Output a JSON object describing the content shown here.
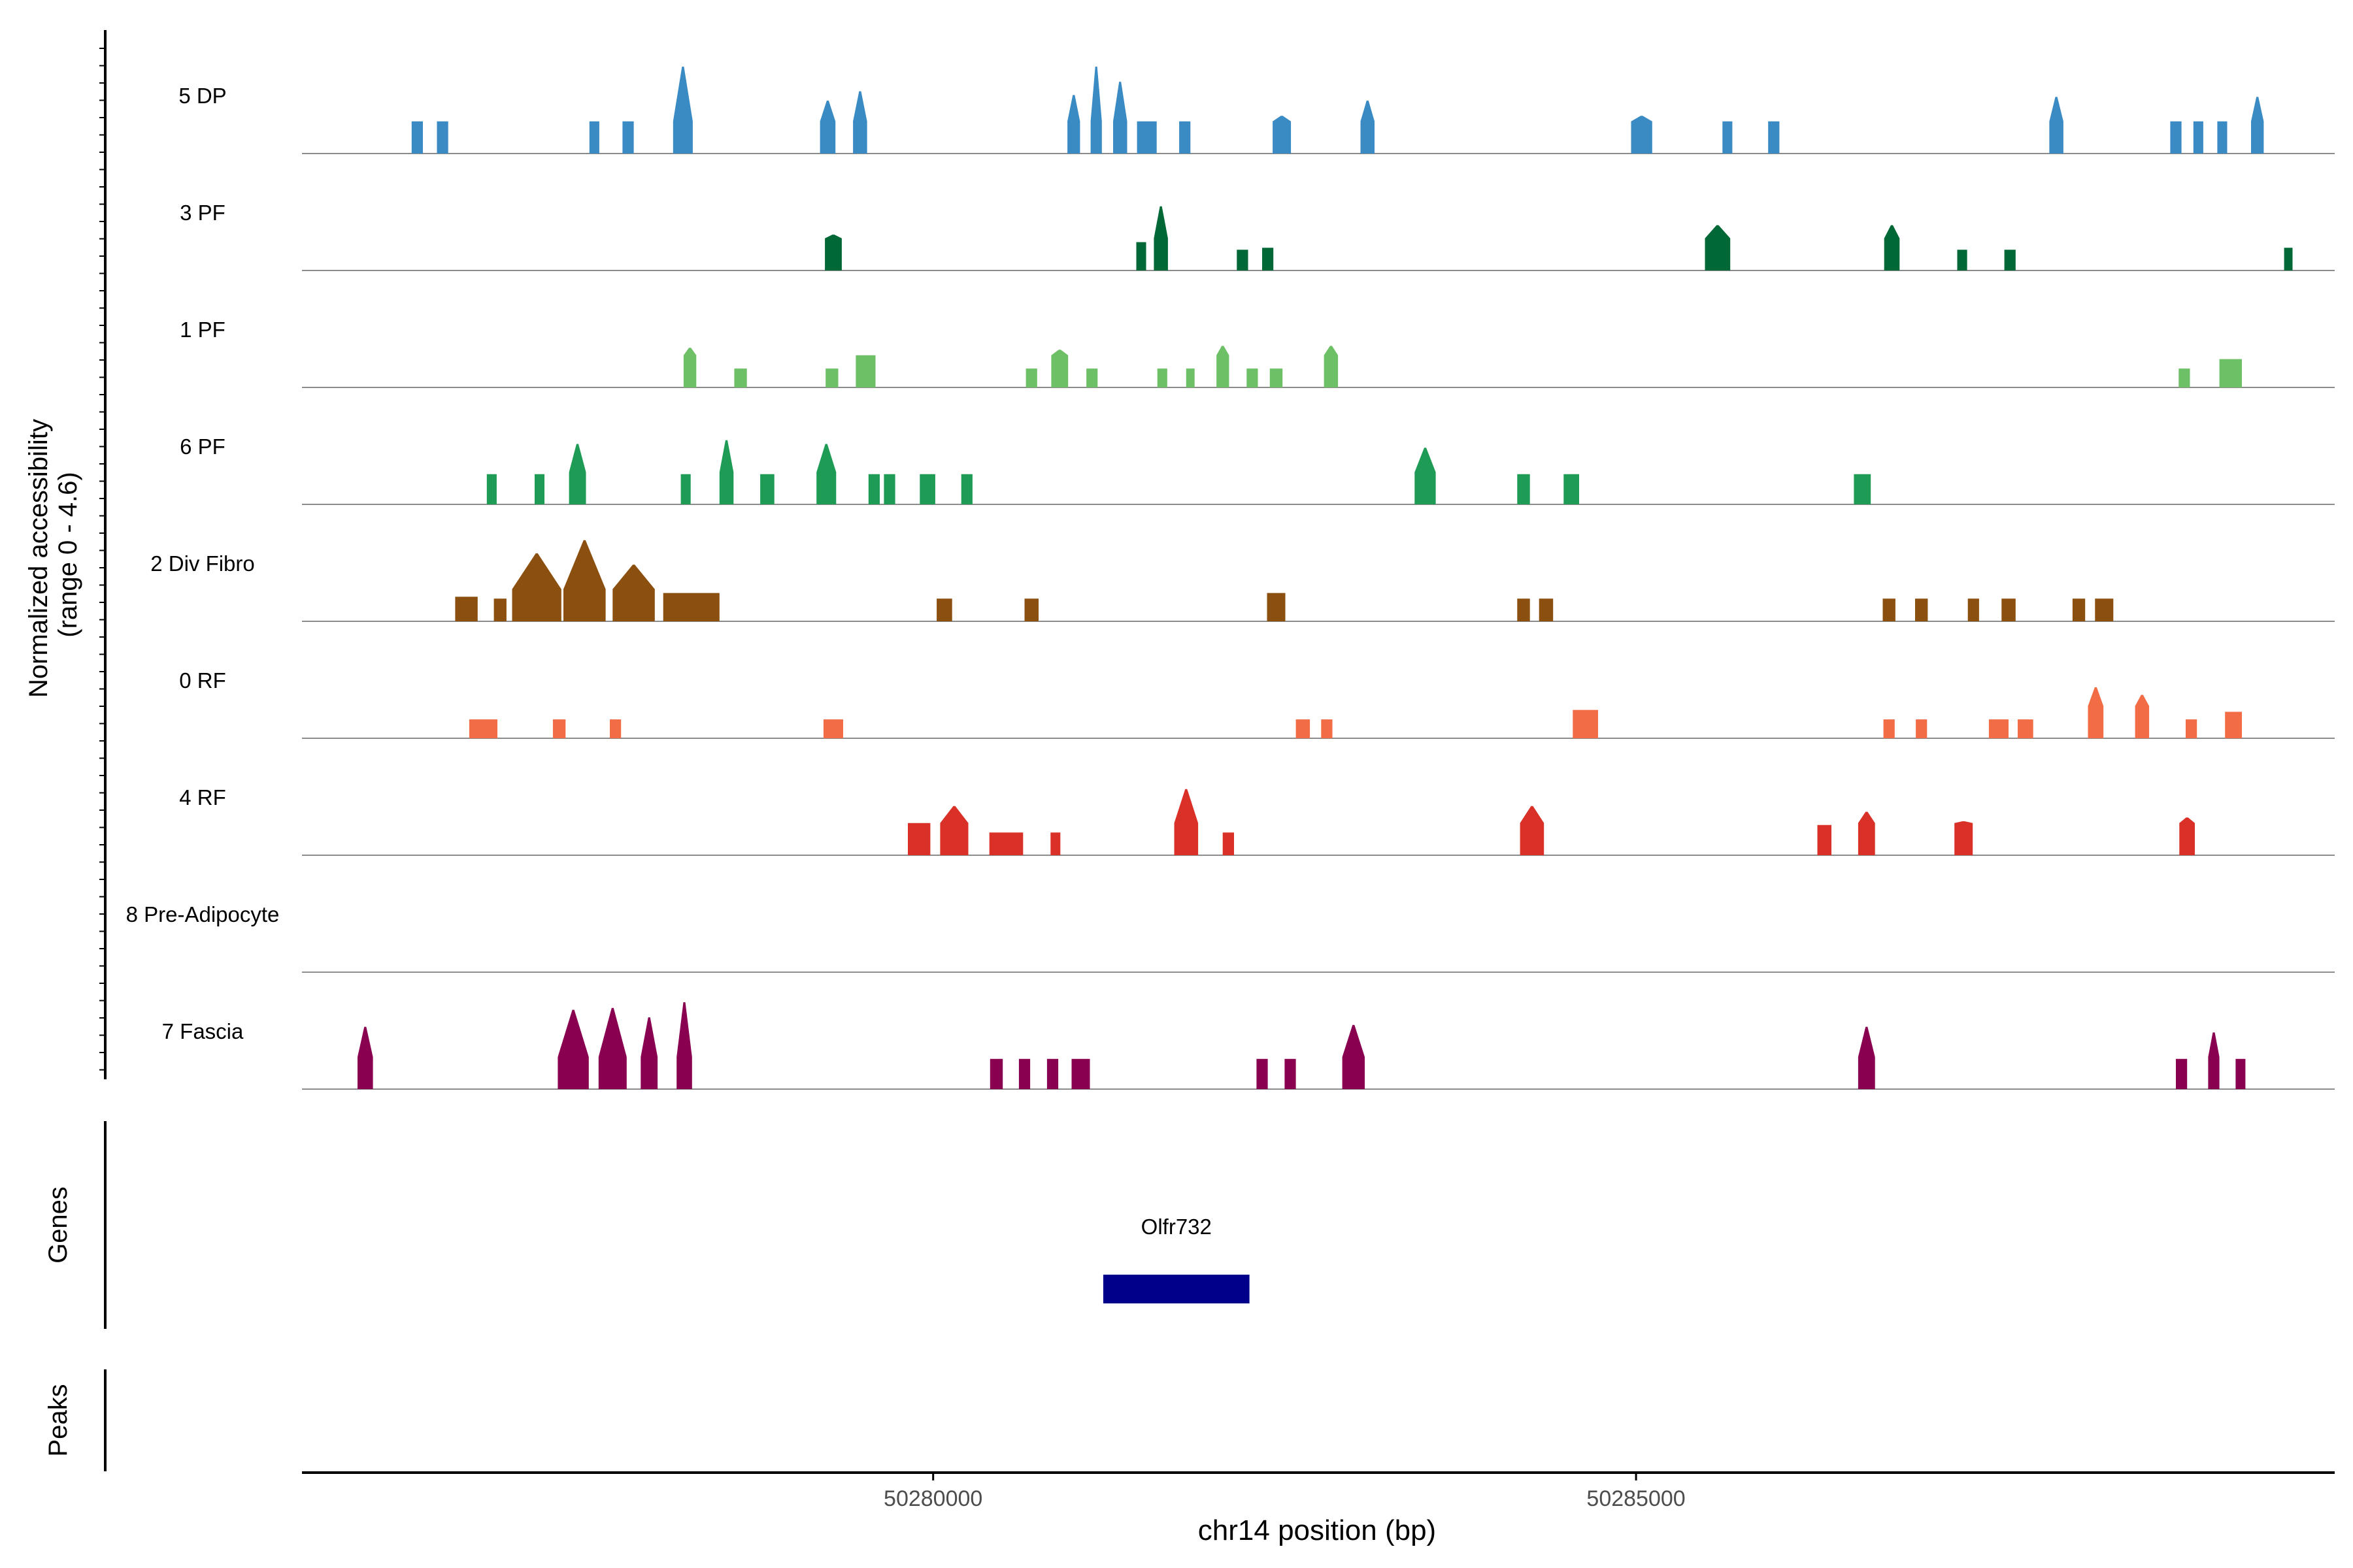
{
  "chart_data": {
    "type": "area",
    "title": "",
    "ylabel_line1": "Normalized accessibility",
    "ylabel_line2": "(range 0 - 4.6)",
    "xlabel": "chr14 position (bp)",
    "y_range": [
      0,
      4.6
    ],
    "x_range": [
      50275510,
      50289970
    ],
    "x_ticks": [
      {
        "value": 50280000,
        "label": "50280000"
      },
      {
        "value": 50285000,
        "label": "50285000"
      }
    ],
    "panel_labels": {
      "genes": "Genes",
      "peaks": "Peaks"
    },
    "colors": {
      "5 DP": "#3A8AC4",
      "3 PF": "#006837",
      "1 PF": "#6DC066",
      "6 PF": "#1E9B55",
      "2 Div Fibro": "#8B5010",
      "0 RF": "#F26C45",
      "4 RF": "#D93027",
      "8 Pre-Adipocyte": "#7A3B8F",
      "7 Fascia": "#8A0050",
      "gene": "#00008B",
      "baseline": "#8C8C8C",
      "axis": "#000000"
    },
    "genes": [
      {
        "name": "Olfr732",
        "start": 50281210,
        "end": 50282250
      }
    ],
    "series": [
      {
        "name": "5 DP",
        "peaks": [
          [
            50276330,
            80,
            1.7
          ],
          [
            50276510,
            80,
            1.7
          ],
          [
            50277590,
            70,
            1.7
          ],
          [
            50277830,
            80,
            1.7
          ],
          [
            50278220,
            140,
            4.6
          ],
          [
            50279250,
            110,
            2.8
          ],
          [
            50279480,
            100,
            3.3
          ],
          [
            50281000,
            90,
            3.1
          ],
          [
            50281160,
            80,
            4.6
          ],
          [
            50281330,
            100,
            3.8
          ],
          [
            50281520,
            140,
            1.7
          ],
          [
            50281790,
            80,
            1.7
          ],
          [
            50282480,
            130,
            2.0
          ],
          [
            50283090,
            100,
            2.8
          ],
          [
            50285040,
            150,
            2.0
          ],
          [
            50285650,
            70,
            1.7
          ],
          [
            50285980,
            80,
            1.7
          ],
          [
            50287990,
            100,
            3.0
          ],
          [
            50288840,
            80,
            1.7
          ],
          [
            50289000,
            70,
            1.7
          ],
          [
            50289170,
            70,
            1.7
          ],
          [
            50289420,
            90,
            3.0
          ]
        ]
      },
      {
        "name": "3 PF",
        "peaks": [
          [
            50279290,
            120,
            1.9
          ],
          [
            50281480,
            70,
            1.5
          ],
          [
            50281620,
            100,
            3.4
          ],
          [
            50282200,
            80,
            1.1
          ],
          [
            50282380,
            80,
            1.2
          ],
          [
            50285580,
            180,
            2.4
          ],
          [
            50286820,
            110,
            2.4
          ],
          [
            50287320,
            70,
            1.1
          ],
          [
            50287660,
            80,
            1.1
          ],
          [
            50289640,
            60,
            1.2
          ]
        ]
      },
      {
        "name": "1 PF",
        "peaks": [
          [
            50278270,
            90,
            2.1
          ],
          [
            50278630,
            90,
            1.0
          ],
          [
            50279280,
            90,
            1.0
          ],
          [
            50279520,
            140,
            1.7
          ],
          [
            50280700,
            80,
            1.0
          ],
          [
            50280900,
            120,
            2.0
          ],
          [
            50281130,
            80,
            1.0
          ],
          [
            50281630,
            70,
            1.0
          ],
          [
            50281830,
            60,
            1.0
          ],
          [
            50282060,
            90,
            2.2
          ],
          [
            50282270,
            80,
            1.0
          ],
          [
            50282440,
            90,
            1.0
          ],
          [
            50282830,
            100,
            2.2
          ],
          [
            50288900,
            80,
            1.0
          ],
          [
            50289230,
            160,
            1.5
          ]
        ]
      },
      {
        "name": "6 PF",
        "peaks": [
          [
            50276860,
            70,
            1.6
          ],
          [
            50277200,
            70,
            1.6
          ],
          [
            50277470,
            120,
            3.2
          ],
          [
            50278240,
            70,
            1.6
          ],
          [
            50278530,
            100,
            3.4
          ],
          [
            50278820,
            100,
            1.6
          ],
          [
            50279240,
            140,
            3.2
          ],
          [
            50279580,
            80,
            1.6
          ],
          [
            50279690,
            80,
            1.6
          ],
          [
            50279960,
            110,
            1.6
          ],
          [
            50280240,
            80,
            1.6
          ],
          [
            50283500,
            150,
            3.0
          ],
          [
            50284200,
            90,
            1.6
          ],
          [
            50284540,
            110,
            1.6
          ],
          [
            50286610,
            120,
            1.6
          ]
        ]
      },
      {
        "name": "2 Div Fibro",
        "peaks": [
          [
            50276680,
            160,
            1.3
          ],
          [
            50276920,
            90,
            1.2
          ],
          [
            50277180,
            350,
            3.6
          ],
          [
            50277520,
            300,
            4.3
          ],
          [
            50277870,
            300,
            3.0
          ],
          [
            50278280,
            400,
            1.5
          ],
          [
            50280080,
            110,
            1.2
          ],
          [
            50280700,
            100,
            1.2
          ],
          [
            50282440,
            130,
            1.5
          ],
          [
            50284200,
            90,
            1.2
          ],
          [
            50284360,
            100,
            1.2
          ],
          [
            50286800,
            90,
            1.2
          ],
          [
            50287030,
            90,
            1.2
          ],
          [
            50287400,
            80,
            1.2
          ],
          [
            50287650,
            100,
            1.2
          ],
          [
            50288150,
            90,
            1.2
          ],
          [
            50288330,
            130,
            1.2
          ]
        ]
      },
      {
        "name": "0 RF",
        "peaks": [
          [
            50276800,
            200,
            1.0
          ],
          [
            50277340,
            90,
            1.0
          ],
          [
            50277740,
            80,
            1.0
          ],
          [
            50279290,
            140,
            1.0
          ],
          [
            50282630,
            100,
            1.0
          ],
          [
            50282800,
            80,
            1.0
          ],
          [
            50284640,
            180,
            1.5
          ],
          [
            50286800,
            80,
            1.0
          ],
          [
            50287030,
            80,
            1.0
          ],
          [
            50287580,
            140,
            1.0
          ],
          [
            50287770,
            110,
            1.0
          ],
          [
            50288270,
            110,
            2.7
          ],
          [
            50288600,
            100,
            2.3
          ],
          [
            50288950,
            80,
            1.0
          ],
          [
            50289250,
            120,
            1.4
          ]
        ]
      },
      {
        "name": "4 RF",
        "peaks": [
          [
            50279900,
            160,
            1.7
          ],
          [
            50280150,
            200,
            2.6
          ],
          [
            50280520,
            240,
            1.2
          ],
          [
            50280870,
            70,
            1.2
          ],
          [
            50281800,
            170,
            3.5
          ],
          [
            50282100,
            80,
            1.2
          ],
          [
            50284260,
            170,
            2.6
          ],
          [
            50286340,
            100,
            1.6
          ],
          [
            50286640,
            120,
            2.3
          ],
          [
            50287330,
            130,
            1.8
          ],
          [
            50288920,
            110,
            2.0
          ]
        ]
      },
      {
        "name": "8 Pre-Adipocyte",
        "peaks": []
      },
      {
        "name": "7 Fascia",
        "peaks": [
          [
            50275960,
            110,
            3.3
          ],
          [
            50277440,
            220,
            4.2
          ],
          [
            50277720,
            200,
            4.3
          ],
          [
            50277980,
            120,
            3.8
          ],
          [
            50278230,
            110,
            4.6
          ],
          [
            50280450,
            90,
            1.6
          ],
          [
            50280650,
            80,
            1.6
          ],
          [
            50280850,
            80,
            1.6
          ],
          [
            50281050,
            130,
            1.6
          ],
          [
            50282340,
            80,
            1.6
          ],
          [
            50282540,
            80,
            1.6
          ],
          [
            50282990,
            160,
            3.4
          ],
          [
            50286640,
            120,
            3.3
          ],
          [
            50288880,
            80,
            1.6
          ],
          [
            50289110,
            80,
            3.0
          ],
          [
            50289300,
            70,
            1.6
          ]
        ]
      }
    ]
  }
}
